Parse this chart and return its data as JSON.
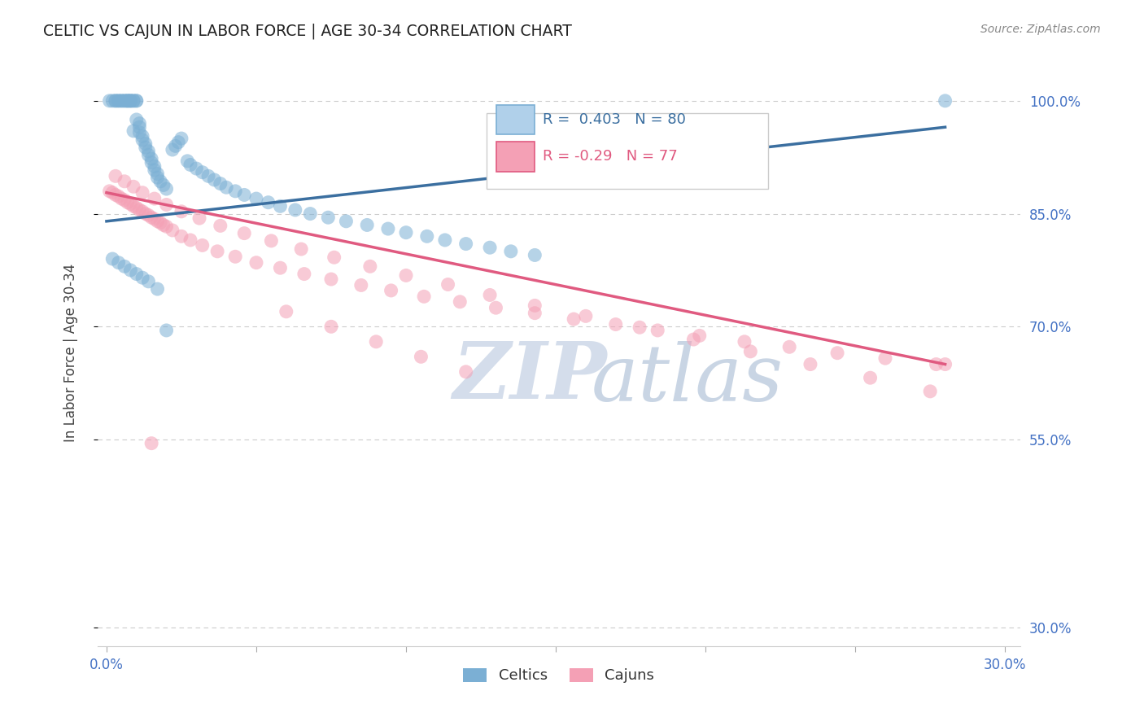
{
  "title": "CELTIC VS CAJUN IN LABOR FORCE | AGE 30-34 CORRELATION CHART",
  "source": "Source: ZipAtlas.com",
  "ylabel": "In Labor Force | Age 30-34",
  "xlim": [
    -0.003,
    0.305
  ],
  "ylim": [
    0.275,
    1.055
  ],
  "xtick_positions": [
    0.0,
    0.05,
    0.1,
    0.15,
    0.2,
    0.25,
    0.3
  ],
  "xticklabels": [
    "0.0%",
    "",
    "",
    "",
    "",
    "",
    "30.0%"
  ],
  "ytick_positions": [
    0.3,
    0.55,
    0.7,
    0.85,
    1.0
  ],
  "yticklabels": [
    "30.0%",
    "55.0%",
    "70.0%",
    "85.0%",
    "100.0%"
  ],
  "R_celtic": 0.403,
  "N_celtic": 80,
  "R_cajun": -0.29,
  "N_cajun": 77,
  "celtic_color": "#7bafd4",
  "cajun_color": "#f4a0b5",
  "line_celtic_color": "#3b6fa0",
  "line_cajun_color": "#e05a80",
  "grid_color": "#cccccc",
  "bg_color": "#ffffff",
  "celtics_x": [
    0.001,
    0.002,
    0.003,
    0.003,
    0.004,
    0.004,
    0.005,
    0.005,
    0.006,
    0.006,
    0.007,
    0.007,
    0.007,
    0.008,
    0.008,
    0.008,
    0.009,
    0.009,
    0.009,
    0.01,
    0.01,
    0.01,
    0.011,
    0.011,
    0.011,
    0.012,
    0.012,
    0.013,
    0.013,
    0.014,
    0.014,
    0.015,
    0.015,
    0.016,
    0.016,
    0.017,
    0.017,
    0.018,
    0.019,
    0.02,
    0.022,
    0.023,
    0.024,
    0.025,
    0.027,
    0.028,
    0.03,
    0.032,
    0.034,
    0.036,
    0.038,
    0.04,
    0.043,
    0.046,
    0.05,
    0.054,
    0.058,
    0.063,
    0.068,
    0.074,
    0.08,
    0.087,
    0.094,
    0.1,
    0.107,
    0.113,
    0.12,
    0.128,
    0.135,
    0.143,
    0.002,
    0.004,
    0.006,
    0.008,
    0.01,
    0.012,
    0.014,
    0.017,
    0.02,
    0.28
  ],
  "celtics_y": [
    1.0,
    1.0,
    1.0,
    1.0,
    1.0,
    1.0,
    1.0,
    1.0,
    1.0,
    1.0,
    1.0,
    1.0,
    1.0,
    1.0,
    1.0,
    1.0,
    1.0,
    1.0,
    0.96,
    1.0,
    1.0,
    0.975,
    0.97,
    0.965,
    0.958,
    0.953,
    0.948,
    0.943,
    0.938,
    0.933,
    0.928,
    0.923,
    0.918,
    0.913,
    0.908,
    0.903,
    0.898,
    0.893,
    0.888,
    0.883,
    0.935,
    0.94,
    0.945,
    0.95,
    0.92,
    0.915,
    0.91,
    0.905,
    0.9,
    0.895,
    0.89,
    0.885,
    0.88,
    0.875,
    0.87,
    0.865,
    0.86,
    0.855,
    0.85,
    0.845,
    0.84,
    0.835,
    0.83,
    0.825,
    0.82,
    0.815,
    0.81,
    0.805,
    0.8,
    0.795,
    0.79,
    0.785,
    0.78,
    0.775,
    0.77,
    0.765,
    0.76,
    0.75,
    0.695,
    1.0
  ],
  "cajuns_x": [
    0.001,
    0.002,
    0.003,
    0.004,
    0.005,
    0.006,
    0.007,
    0.008,
    0.009,
    0.01,
    0.011,
    0.012,
    0.013,
    0.014,
    0.015,
    0.016,
    0.017,
    0.018,
    0.019,
    0.02,
    0.022,
    0.025,
    0.028,
    0.032,
    0.037,
    0.043,
    0.05,
    0.058,
    0.066,
    0.075,
    0.085,
    0.095,
    0.106,
    0.118,
    0.13,
    0.143,
    0.156,
    0.17,
    0.184,
    0.198,
    0.213,
    0.228,
    0.244,
    0.26,
    0.277,
    0.003,
    0.006,
    0.009,
    0.012,
    0.016,
    0.02,
    0.025,
    0.031,
    0.038,
    0.046,
    0.055,
    0.065,
    0.076,
    0.088,
    0.1,
    0.114,
    0.128,
    0.143,
    0.16,
    0.178,
    0.196,
    0.215,
    0.235,
    0.255,
    0.275,
    0.06,
    0.075,
    0.09,
    0.105,
    0.12,
    0.28,
    0.015
  ],
  "cajuns_y": [
    0.88,
    0.878,
    0.875,
    0.873,
    0.87,
    0.868,
    0.865,
    0.863,
    0.86,
    0.858,
    0.855,
    0.853,
    0.85,
    0.848,
    0.845,
    0.843,
    0.84,
    0.838,
    0.835,
    0.833,
    0.828,
    0.82,
    0.815,
    0.808,
    0.8,
    0.793,
    0.785,
    0.778,
    0.77,
    0.763,
    0.755,
    0.748,
    0.74,
    0.733,
    0.725,
    0.718,
    0.71,
    0.703,
    0.695,
    0.688,
    0.68,
    0.673,
    0.665,
    0.658,
    0.65,
    0.9,
    0.893,
    0.886,
    0.878,
    0.87,
    0.862,
    0.853,
    0.844,
    0.834,
    0.824,
    0.814,
    0.803,
    0.792,
    0.78,
    0.768,
    0.756,
    0.742,
    0.728,
    0.714,
    0.699,
    0.683,
    0.667,
    0.65,
    0.632,
    0.614,
    0.72,
    0.7,
    0.68,
    0.66,
    0.64,
    0.65,
    0.545
  ],
  "celtic_line_x": [
    0.0,
    0.28
  ],
  "celtic_line_y": [
    0.84,
    0.965
  ],
  "cajun_line_x": [
    0.0,
    0.28
  ],
  "cajun_line_y": [
    0.878,
    0.65
  ]
}
